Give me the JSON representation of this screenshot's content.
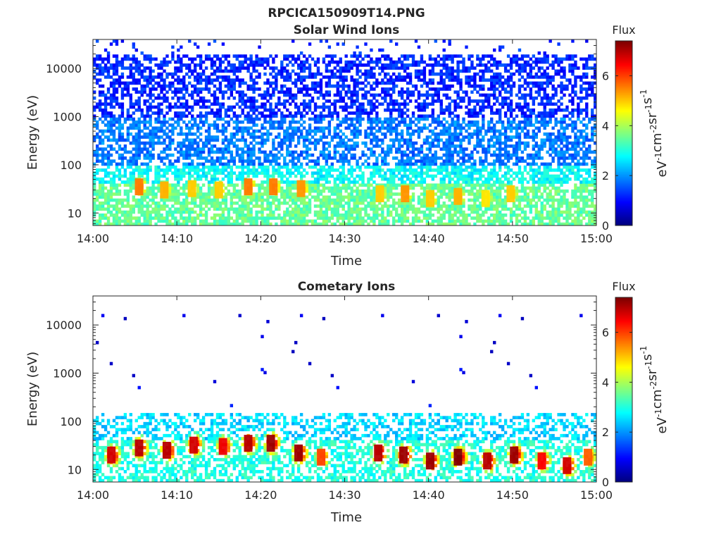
{
  "figure": {
    "title": "RPCICA150909T14.PNG"
  },
  "colorbar": {
    "title": "Flux",
    "ticks": [
      "0",
      "2",
      "4",
      "6"
    ],
    "tick_values": [
      0,
      2,
      4,
      6
    ],
    "range": [
      0,
      7.4
    ],
    "unit_parts": [
      "eV",
      "-1",
      "cm",
      "-2",
      "sr",
      "-1",
      "s",
      "-1"
    ],
    "colormap": "jet"
  },
  "axes": {
    "xlabel": "Time",
    "ylabel": "Energy (eV)",
    "xticks": [
      "14:00",
      "14:10",
      "14:20",
      "14:30",
      "14:40",
      "14:50",
      "15:00"
    ],
    "xtick_minutes": [
      0,
      10,
      20,
      30,
      40,
      50,
      60
    ],
    "yticks": [
      "10",
      "100",
      "1000",
      "10000"
    ],
    "ytick_values": [
      10,
      100,
      1000,
      10000
    ],
    "yscale": "log"
  },
  "chart_data": [
    {
      "type": "heatmap",
      "title": "Solar Wind Ions",
      "xlabel": "Time",
      "ylabel": "Energy (eV)",
      "xlim": [
        "14:00",
        "15:00"
      ],
      "ylim": [
        5.5,
        40000
      ],
      "yscale": "log",
      "colorbar_label": "Flux",
      "clim": [
        0,
        7.4
      ],
      "flux_levels": {
        "energy_above_1000_eV": 1.2,
        "energy_100_to_1000_eV": 1.8,
        "energy_40_to_100_eV": 2.8,
        "energy_below_40_eV": 3.5
      },
      "peak_events": [
        {
          "time_min": 5.5,
          "energy_eV": 35,
          "flux": 5.6
        },
        {
          "time_min": 8.5,
          "energy_eV": 30,
          "flux": 5.2
        },
        {
          "time_min": 11.8,
          "energy_eV": 32,
          "flux": 5.0
        },
        {
          "time_min": 15.0,
          "energy_eV": 30,
          "flux": 5.0
        },
        {
          "time_min": 18.5,
          "energy_eV": 35,
          "flux": 5.6
        },
        {
          "time_min": 21.5,
          "energy_eV": 35,
          "flux": 5.6
        },
        {
          "time_min": 24.8,
          "energy_eV": 32,
          "flux": 5.4
        },
        {
          "time_min": 34.2,
          "energy_eV": 25,
          "flux": 5.0
        },
        {
          "time_min": 37.2,
          "energy_eV": 25,
          "flux": 5.4
        },
        {
          "time_min": 40.2,
          "energy_eV": 20,
          "flux": 5.0
        },
        {
          "time_min": 43.5,
          "energy_eV": 22,
          "flux": 5.2
        },
        {
          "time_min": 46.8,
          "energy_eV": 20,
          "flux": 4.8
        },
        {
          "time_min": 49.8,
          "energy_eV": 25,
          "flux": 5.0
        }
      ]
    },
    {
      "type": "heatmap",
      "title": "Cometary Ions",
      "xlabel": "Time",
      "ylabel": "Energy (eV)",
      "xlim": [
        "14:00",
        "15:00"
      ],
      "ylim": [
        5.5,
        40000
      ],
      "yscale": "log",
      "colorbar_label": "Flux",
      "clim": [
        0,
        7.4
      ],
      "flux_levels": {
        "energy_above_150_eV": 0.8,
        "energy_40_to_150_eV": 2.5,
        "energy_below_40_eV": 3.0
      },
      "peak_events": [
        {
          "time_min": 2.2,
          "energy_eV": 20,
          "flux": 6.8
        },
        {
          "time_min": 5.5,
          "energy_eV": 28,
          "flux": 7.0
        },
        {
          "time_min": 8.8,
          "energy_eV": 25,
          "flux": 7.0
        },
        {
          "time_min": 12.0,
          "energy_eV": 32,
          "flux": 6.8
        },
        {
          "time_min": 15.5,
          "energy_eV": 30,
          "flux": 6.6
        },
        {
          "time_min": 18.5,
          "energy_eV": 35,
          "flux": 7.0
        },
        {
          "time_min": 21.2,
          "energy_eV": 35,
          "flux": 7.2
        },
        {
          "time_min": 24.5,
          "energy_eV": 22,
          "flux": 7.2
        },
        {
          "time_min": 27.2,
          "energy_eV": 18,
          "flux": 6.0
        },
        {
          "time_min": 34.0,
          "energy_eV": 22,
          "flux": 7.0
        },
        {
          "time_min": 37.0,
          "energy_eV": 20,
          "flux": 7.2
        },
        {
          "time_min": 40.2,
          "energy_eV": 15,
          "flux": 7.2
        },
        {
          "time_min": 43.5,
          "energy_eV": 18,
          "flux": 7.4
        },
        {
          "time_min": 47.0,
          "energy_eV": 15,
          "flux": 7.0
        },
        {
          "time_min": 50.2,
          "energy_eV": 20,
          "flux": 7.2
        },
        {
          "time_min": 53.5,
          "energy_eV": 15,
          "flux": 6.5
        },
        {
          "time_min": 56.5,
          "energy_eV": 12,
          "flux": 6.8
        },
        {
          "time_min": 59.0,
          "energy_eV": 18,
          "flux": 5.8
        }
      ]
    }
  ]
}
